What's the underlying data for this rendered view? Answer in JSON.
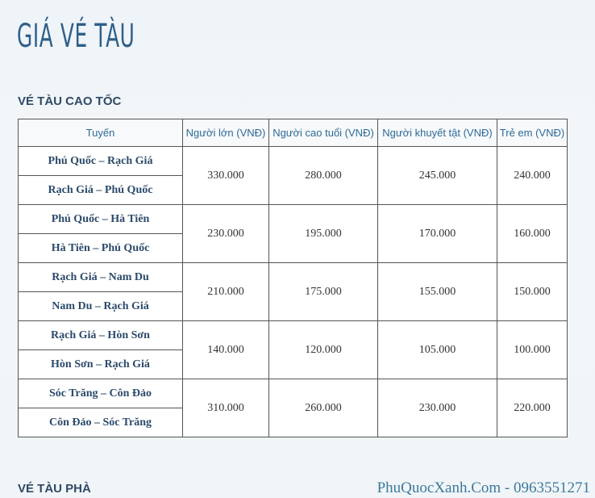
{
  "title": "GIÁ VÉ TÀU",
  "section1": "VÉ TÀU CAO TỐC",
  "section2": "VÉ TÀU PHÀ",
  "watermark": "PhuQuocXanh.Com - 0963551271",
  "table": {
    "headers": [
      "Tuyến",
      "Người lớn (VNĐ)",
      "Người cao tuổi (VNĐ)",
      "Người khuyết tật (VNĐ)",
      "Trẻ em (VNĐ)"
    ],
    "groups": [
      {
        "routes": [
          "Phú Quốc – Rạch Giá",
          "Rạch Giá – Phú Quốc"
        ],
        "prices": [
          "330.000",
          "280.000",
          "245.000",
          "240.000"
        ]
      },
      {
        "routes": [
          "Phú Quốc – Hà Tiên",
          "Hà Tiên – Phú Quốc"
        ],
        "prices": [
          "230.000",
          "195.000",
          "170.000",
          "160.000"
        ]
      },
      {
        "routes": [
          "Rạch Giá – Nam Du",
          "Nam Du – Rạch Giá"
        ],
        "prices": [
          "210.000",
          "175.000",
          "155.000",
          "150.000"
        ]
      },
      {
        "routes": [
          "Rạch Giá – Hòn Sơn",
          "Hòn Sơn – Rạch Giá"
        ],
        "prices": [
          "140.000",
          "120.000",
          "105.000",
          "100.000"
        ]
      },
      {
        "routes": [
          "Sóc Trăng – Côn Đảo",
          "Côn Đảo – Sóc Trăng"
        ],
        "prices": [
          "310.000",
          "260.000",
          "230.000",
          "220.000"
        ]
      }
    ]
  }
}
